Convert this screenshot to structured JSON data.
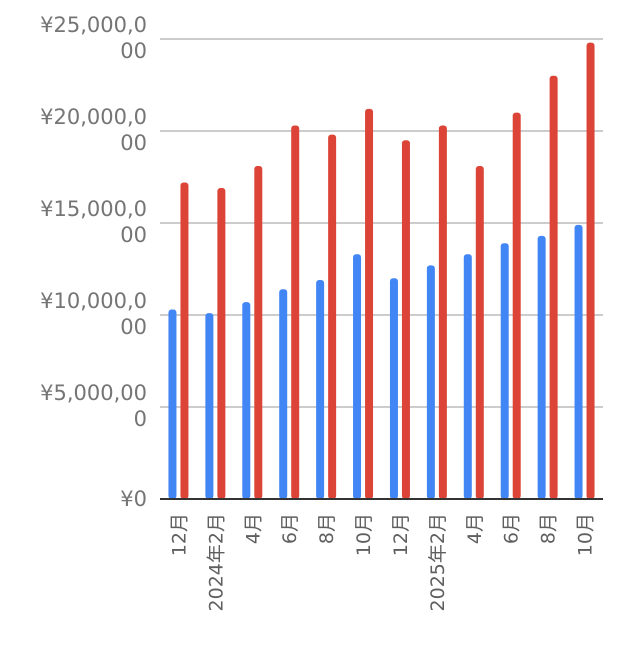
{
  "chart_data": {
    "type": "bar",
    "categories": [
      "12月",
      "2024年2月",
      "4月",
      "6月",
      "8月",
      "10月",
      "12月",
      "2025年2月",
      "4月",
      "6月",
      "8月",
      "10月"
    ],
    "series": [
      {
        "color": "#4285f4",
        "values": [
          10300,
          10100,
          10700,
          11400,
          11900,
          13300,
          12000,
          12700,
          13300,
          13900,
          14300,
          14900
        ]
      },
      {
        "color": "#db4437",
        "values": [
          17200,
          16900,
          18100,
          20300,
          19800,
          21200,
          19500,
          20300,
          18100,
          21000,
          23000,
          24800
        ]
      }
    ],
    "ylim": [
      0,
      25000
    ],
    "yticks": [
      0,
      5000,
      10000,
      15000,
      20000,
      25000
    ],
    "ytick_labels": [
      [
        "¥0"
      ],
      [
        "¥5,000,00",
        "0"
      ],
      [
        "¥10,000,0",
        "00"
      ],
      [
        "¥15,000,0",
        "00"
      ],
      [
        "¥20,000,0",
        "00"
      ],
      [
        "¥25,000,0",
        "00"
      ]
    ],
    "grid": true,
    "legend": false
  }
}
